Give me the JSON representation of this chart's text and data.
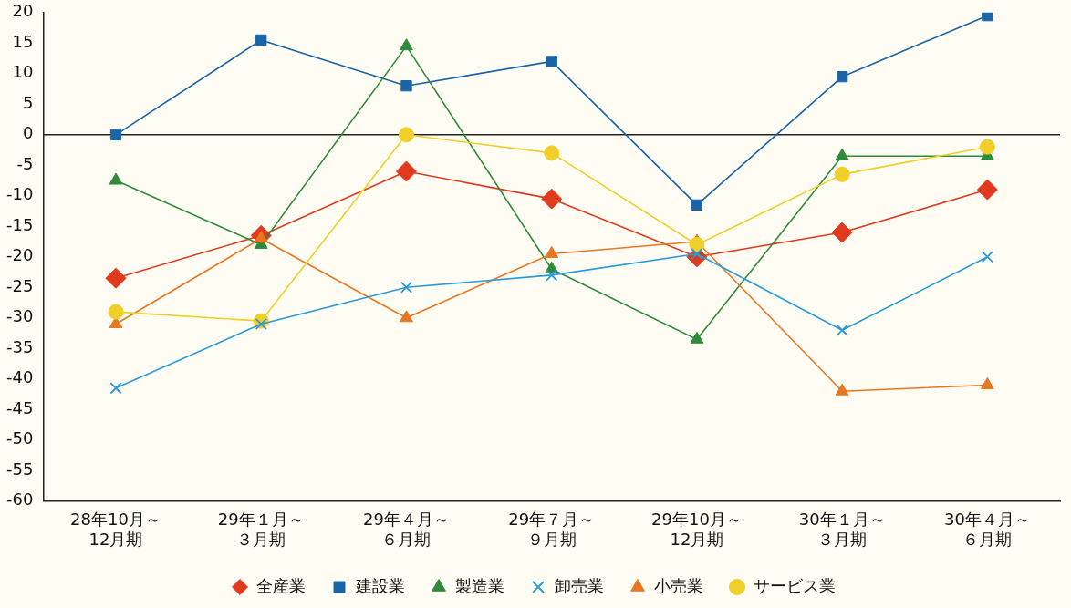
{
  "chart_data": {
    "type": "line",
    "categories": [
      "28年10月～12月期",
      "29年１月～３月期",
      "29年４月～６月期",
      "29年７月～９月期",
      "29年10月～12月期",
      "30年１月～３月期",
      "30年４月～６月期"
    ],
    "series": [
      {
        "name": "全産業",
        "color": "#e03a1e",
        "marker": "diamond",
        "values": [
          -23.5,
          -16.5,
          -6,
          -10.5,
          -20,
          -16,
          -9
        ]
      },
      {
        "name": "建設業",
        "color": "#1b64a5",
        "marker": "square",
        "values": [
          0,
          15.5,
          8,
          12,
          -11.5,
          9.5,
          19.5
        ]
      },
      {
        "name": "製造業",
        "color": "#2f8a3a",
        "marker": "triangle",
        "values": [
          -7.5,
          -18,
          14.5,
          -22,
          -33.5,
          -3.5,
          -3.5
        ]
      },
      {
        "name": "卸売業",
        "color": "#2a9ad8",
        "marker": "cross",
        "values": [
          -41.5,
          -31,
          -25,
          -23,
          -19.5,
          -32,
          -20
        ]
      },
      {
        "name": "小売業",
        "color": "#e87722",
        "marker": "triangle",
        "values": [
          -31,
          -17,
          -30,
          -19.5,
          -17.5,
          -42,
          -41
        ]
      },
      {
        "name": "サービス業",
        "color": "#f0cf2a",
        "marker": "circle",
        "values": [
          -29,
          -30.5,
          0,
          -3,
          -18,
          -6.5,
          -2
        ]
      }
    ],
    "ylim": [
      -60,
      20
    ],
    "yticks": [
      -60,
      -55,
      -50,
      -45,
      -40,
      -35,
      -30,
      -25,
      -20,
      -15,
      -10,
      -5,
      0,
      5,
      10,
      15,
      20
    ],
    "grid": false,
    "legend": "bottom",
    "line_style": "solid",
    "ref_lines": [
      {
        "axis": "y",
        "value": 0,
        "color": "#222222"
      }
    ]
  }
}
